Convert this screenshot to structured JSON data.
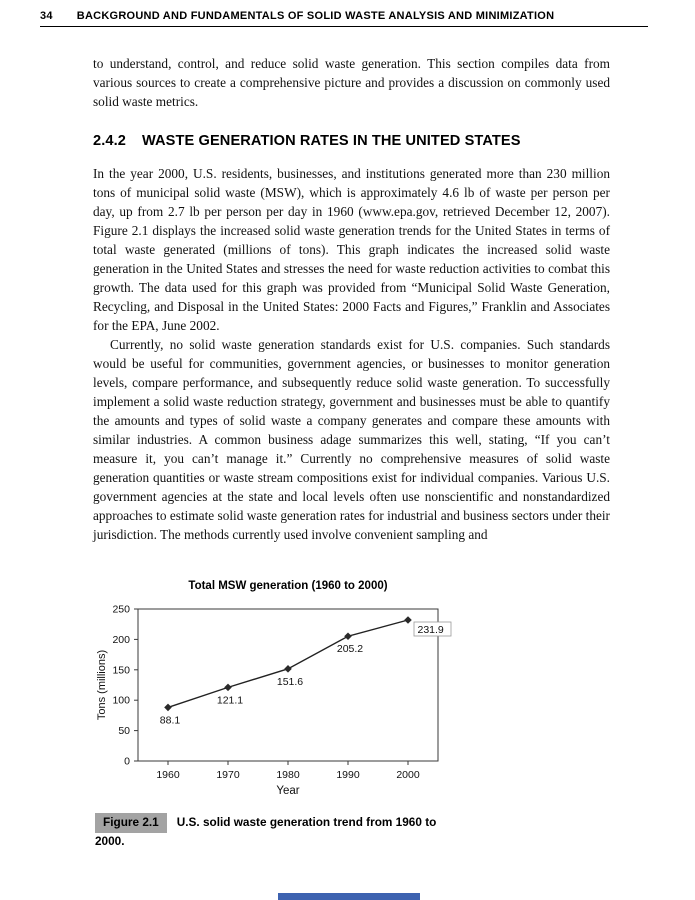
{
  "page": {
    "page_number": "34",
    "running_header": "BACKGROUND AND FUNDAMENTALS OF SOLID WASTE ANALYSIS AND MINIMIZATION"
  },
  "section": {
    "number": "2.4.2",
    "title": "WASTE GENERATION RATES IN THE UNITED STATES"
  },
  "paragraphs": {
    "intro": "to understand, control, and reduce solid waste generation. This section compiles data from various sources to create a comprehensive picture and provides a discussion on commonly used solid waste metrics.",
    "p1": "In the year 2000, U.S. residents, businesses, and institutions generated more than 230 million tons of municipal solid waste (MSW), which is approximately 4.6 lb of waste per person per day, up from 2.7 lb per person per day in 1960 (www.epa.gov, retrieved December 12, 2007). Figure 2.1 displays the increased solid waste generation trends for the United States in terms of total waste generated (millions of tons). This graph indicates the increased solid waste generation in the United States and stresses the need for waste reduction activities to combat this growth. The data used for this graph was provided from “Municipal Solid Waste Generation, Recycling, and Disposal in the United States: 2000 Facts and Figures,” Franklin and Associates for the EPA, June 2002.",
    "p2": "Currently, no solid waste generation standards exist for U.S. companies. Such standards would be useful for communities, government agencies, or businesses to monitor generation levels, compare performance, and subsequently reduce solid waste generation. To successfully implement a solid waste reduction strategy, government and businesses must be able to quantify the amounts and types of solid waste a company generates and compare these amounts with similar industries. A common business adage summarizes this well, stating, “If you can’t measure it, you can’t manage it.” Currently no comprehensive measures of solid waste generation quantities or waste stream compositions exist for individual companies. Various U.S. government agencies at the state and local levels often use nonscientific and nonstandardized approaches to estimate solid waste generation rates for industrial and business sectors under their jurisdiction. The methods currently used involve convenient sampling and"
  },
  "figure": {
    "label": "Figure 2.1",
    "caption": "U.S. solid waste generation trend from 1960 to 2000."
  },
  "chart_data": {
    "type": "line",
    "title": "Total MSW generation (1960 to 2000)",
    "xlabel": "Year",
    "ylabel": "Tons (millions)",
    "x": [
      1960,
      1970,
      1980,
      1990,
      2000
    ],
    "values": [
      88.1,
      121.1,
      151.6,
      205.2,
      231.9
    ],
    "ylim": [
      0,
      250
    ],
    "yticks": [
      0,
      50,
      100,
      150,
      200,
      250
    ],
    "marker": "diamond",
    "grid": false,
    "legend": "none",
    "line_color": "#222222"
  }
}
